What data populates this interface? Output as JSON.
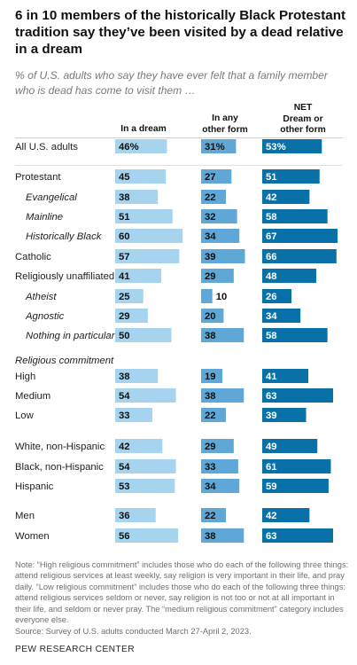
{
  "title": "6 in 10 members of the historically Black Protestant tradition say they’ve been visited by a dead relative in a dream",
  "subtitle": "% of U.S. adults who say they have ever felt that a family member who is dead has come to visit them …",
  "note": "Note: “High religious commitment” includes those who do each of the following three things: attend religious services at least weekly, say religion is very important in their life, and pray daily. “Low religious commitment” includes those who do each of the following three things: attend religious services seldom or never, say religion is not too or not at all important in their life, and seldom or never pray. The “medium religious commitment” category includes everyone else.",
  "source": "Source: Survey of U.S. adults conducted March 27-April 2, 2023.",
  "brand": "PEW RESEARCH CENTER",
  "colors": {
    "dream": "#a6d3ee",
    "other": "#5ea7d6",
    "net": "#0a71a8"
  },
  "chart_data": {
    "type": "bar",
    "section_heading": "Religious commitment",
    "columns": [
      {
        "key": "dream",
        "header": [
          "In a dream"
        ]
      },
      {
        "key": "other",
        "header": [
          "In any",
          "other form"
        ]
      },
      {
        "key": "net",
        "header": [
          "NET",
          "Dream or",
          "other form"
        ]
      }
    ],
    "rows": [
      {
        "label": "All U.S. adults",
        "indent": false,
        "dream": 46,
        "other": 31,
        "net": 53,
        "pct": true
      },
      {
        "label": "Protestant",
        "indent": false,
        "dream": 45,
        "other": 27,
        "net": 51
      },
      {
        "label": "Evangelical",
        "indent": true,
        "dream": 38,
        "other": 22,
        "net": 42
      },
      {
        "label": "Mainline",
        "indent": true,
        "dream": 51,
        "other": 32,
        "net": 58
      },
      {
        "label": "Historically Black",
        "indent": true,
        "dream": 60,
        "other": 34,
        "net": 67
      },
      {
        "label": "Catholic",
        "indent": false,
        "dream": 57,
        "other": 39,
        "net": 66
      },
      {
        "label": "Religiously unaffiliated",
        "indent": false,
        "dream": 41,
        "other": 29,
        "net": 48
      },
      {
        "label": "Atheist",
        "indent": true,
        "dream": 25,
        "other": 10,
        "net": 26
      },
      {
        "label": "Agnostic",
        "indent": true,
        "dream": 29,
        "other": 20,
        "net": 34
      },
      {
        "label": "Nothing in particular",
        "indent": true,
        "dream": 50,
        "other": 38,
        "net": 58
      },
      {
        "label": "High",
        "indent": false,
        "dream": 38,
        "other": 19,
        "net": 41
      },
      {
        "label": "Medium",
        "indent": false,
        "dream": 54,
        "other": 38,
        "net": 63
      },
      {
        "label": "Low",
        "indent": false,
        "dream": 33,
        "other": 22,
        "net": 39
      },
      {
        "label": "White, non-Hispanic",
        "indent": false,
        "dream": 42,
        "other": 29,
        "net": 49
      },
      {
        "label": "Black, non-Hispanic",
        "indent": false,
        "dream": 54,
        "other": 33,
        "net": 61
      },
      {
        "label": "Hispanic",
        "indent": false,
        "dream": 53,
        "other": 34,
        "net": 59
      },
      {
        "label": "Men",
        "indent": false,
        "dream": 36,
        "other": 22,
        "net": 42
      },
      {
        "label": "Women",
        "indent": false,
        "dream": 56,
        "other": 38,
        "net": 63
      }
    ]
  }
}
